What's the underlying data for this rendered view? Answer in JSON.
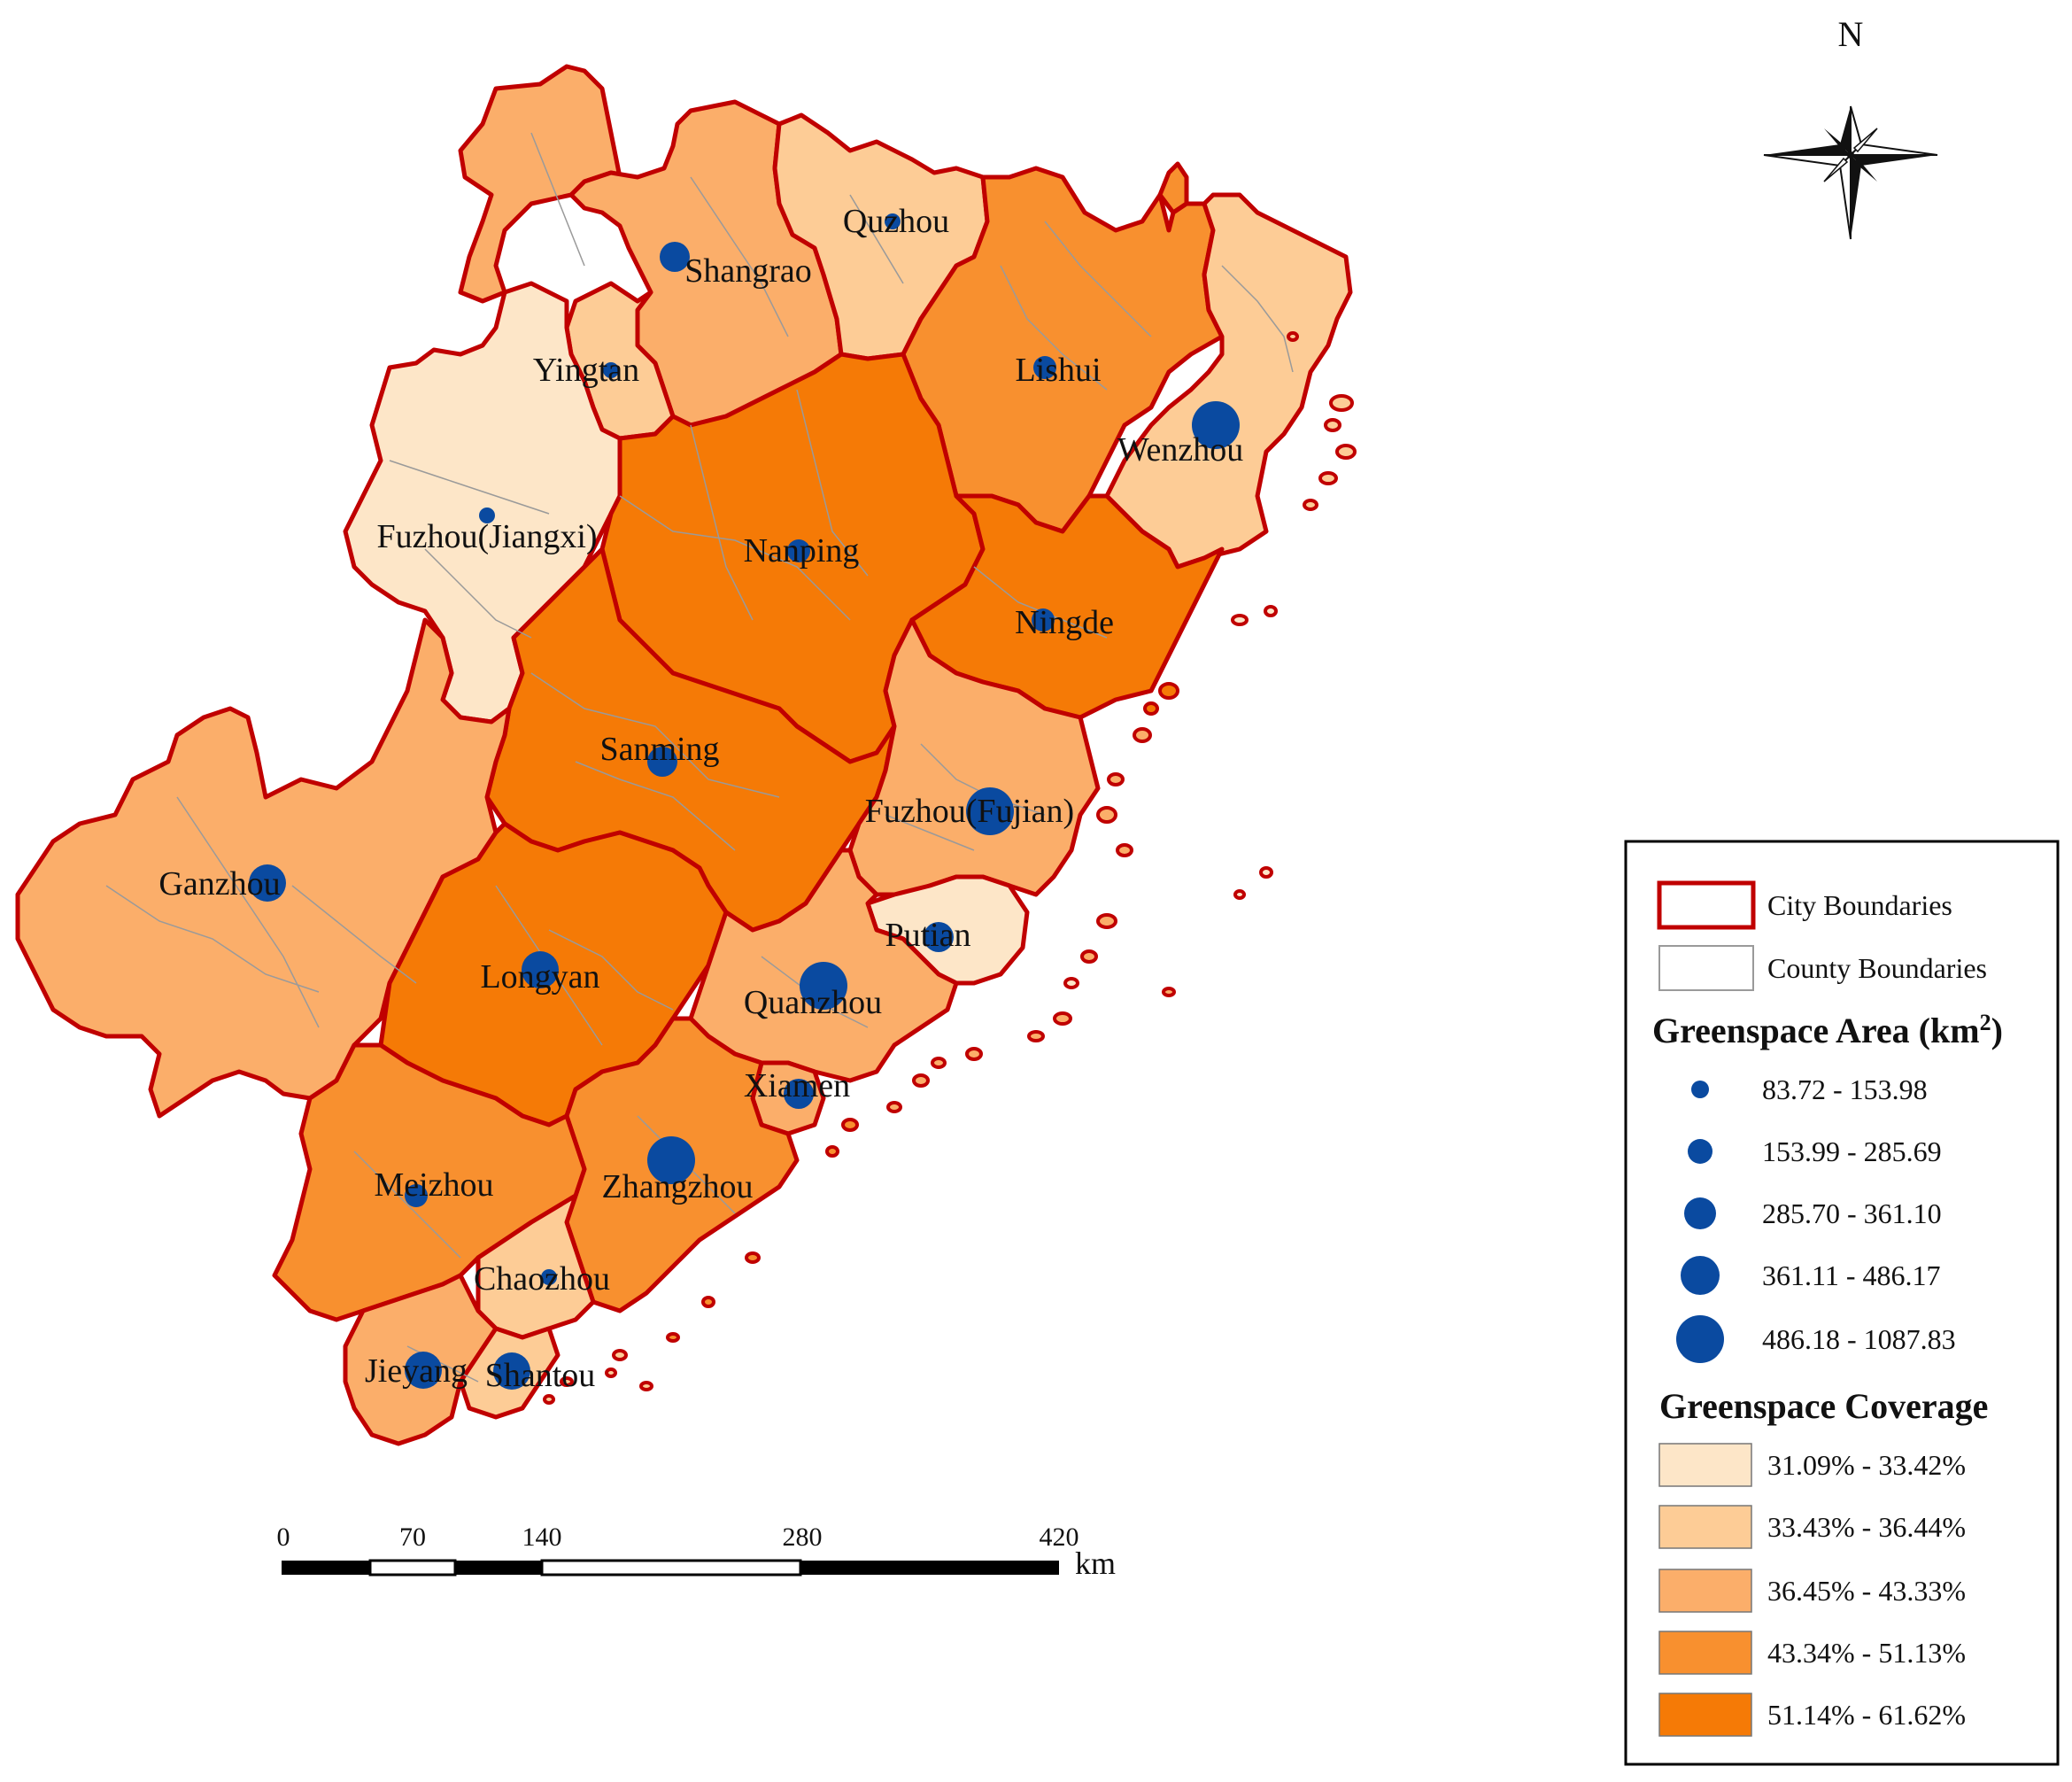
{
  "colors": {
    "city_boundary": "#c00000",
    "county_boundary": "#9a9a9a",
    "dot": "#0a4aa0",
    "coverage": [
      "#fde6c8",
      "#fdcc96",
      "#fbae6a",
      "#f8902f",
      "#f57a06"
    ]
  },
  "cities": [
    {
      "name": "Quzhou",
      "coverage_class": 1,
      "area_class": 0
    },
    {
      "name": "Shangrao",
      "coverage_class": 2,
      "area_class": 2
    },
    {
      "name": "Yingtan",
      "coverage_class": 1,
      "area_class": 0
    },
    {
      "name": "Lishui",
      "coverage_class": 3,
      "area_class": 1
    },
    {
      "name": "Wenzhou",
      "coverage_class": 1,
      "area_class": 4
    },
    {
      "name": "Fuzhou(Jiangxi)",
      "coverage_class": 0,
      "area_class": 0
    },
    {
      "name": "Nanping",
      "coverage_class": 4,
      "area_class": 1
    },
    {
      "name": "Ningde",
      "coverage_class": 4,
      "area_class": 1
    },
    {
      "name": "Sanming",
      "coverage_class": 4,
      "area_class": 2
    },
    {
      "name": "Fuzhou(Fujian)",
      "coverage_class": 2,
      "area_class": 4
    },
    {
      "name": "Ganzhou",
      "coverage_class": 2,
      "area_class": 3
    },
    {
      "name": "Putian",
      "coverage_class": 0,
      "area_class": 2
    },
    {
      "name": "Longyan",
      "coverage_class": 4,
      "area_class": 3
    },
    {
      "name": "Quanzhou",
      "coverage_class": 2,
      "area_class": 4
    },
    {
      "name": "Xiamen",
      "coverage_class": 2,
      "area_class": 2
    },
    {
      "name": "Zhangzhou",
      "coverage_class": 3,
      "area_class": 4
    },
    {
      "name": "Meizhou",
      "coverage_class": 3,
      "area_class": 1
    },
    {
      "name": "Chaozhou",
      "coverage_class": 1,
      "area_class": 0
    },
    {
      "name": "Jieyang",
      "coverage_class": 2,
      "area_class": 3
    },
    {
      "name": "Shantou",
      "coverage_class": 1,
      "area_class": 3
    }
  ],
  "legend": {
    "city_boundaries": "City Boundaries",
    "county_boundaries": "County Boundaries",
    "area_title": "Greenspace Area (km",
    "area_title_sup": "2",
    "area_title_close": ")",
    "area_classes": [
      "83.72 - 153.98",
      "153.99 - 285.69",
      "285.70 - 361.10",
      "361.11 - 486.17",
      "486.18 - 1087.83"
    ],
    "coverage_title": "Greenspace Coverage",
    "coverage_classes": [
      "31.09% - 33.42%",
      "33.43% - 36.44%",
      "36.45% - 43.33%",
      "43.34% - 51.13%",
      "51.14% - 61.62%"
    ]
  },
  "north_label": "N",
  "scale_bar": {
    "ticks": [
      "0",
      "70",
      "140",
      "280",
      "420"
    ],
    "unit": "km"
  }
}
